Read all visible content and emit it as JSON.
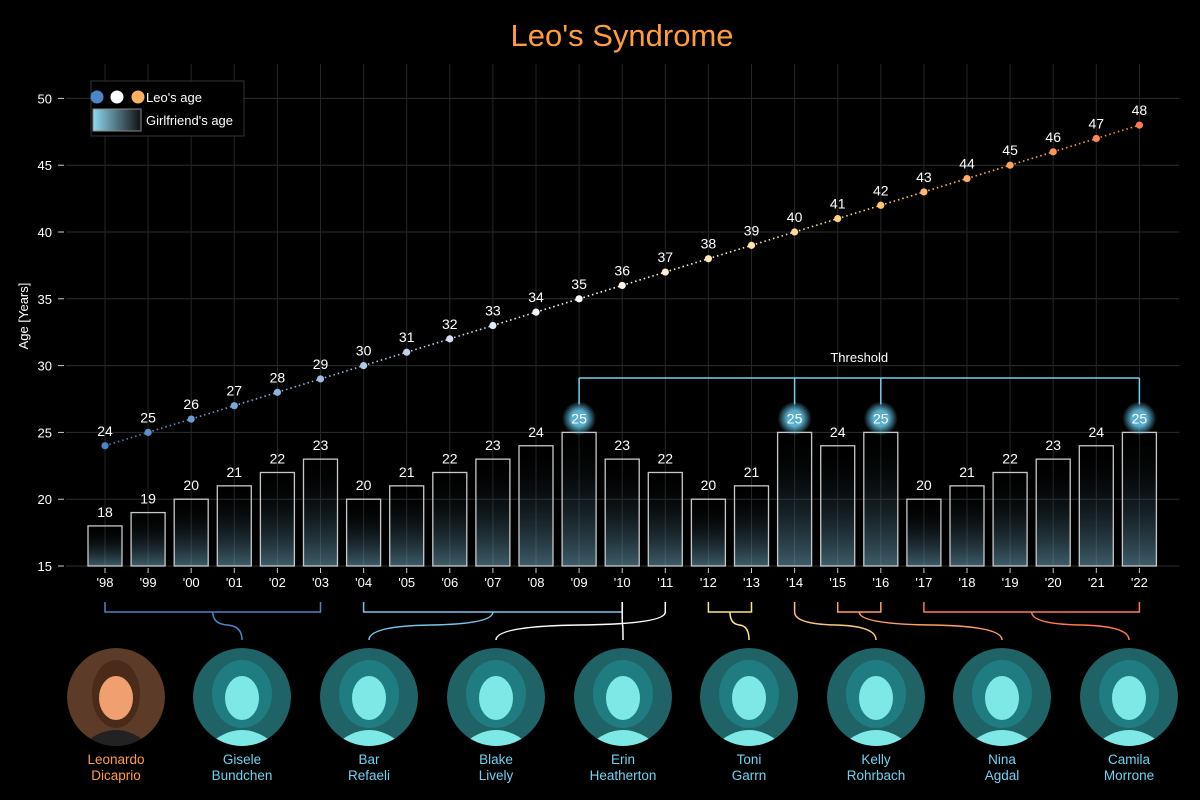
{
  "title": "Leo's Syndrome",
  "chart_data": {
    "type": "bar",
    "title": "Leo's Syndrome",
    "xlabel": "",
    "ylabel": "Age [Years]",
    "ylim": [
      15,
      52
    ],
    "yticks": [
      15,
      20,
      25,
      30,
      35,
      40,
      45,
      50
    ],
    "categories": [
      "'98",
      "'99",
      "'00",
      "'01",
      "'02",
      "'03",
      "'04",
      "'05",
      "'06",
      "'07",
      "'08",
      "'09",
      "'10",
      "'11",
      "'12",
      "'13",
      "'14",
      "'15",
      "'16",
      "'17",
      "'18",
      "'19",
      "'20",
      "'21",
      "'22"
    ],
    "series": [
      {
        "name": "Leo's age",
        "type": "line",
        "values": [
          24,
          25,
          26,
          27,
          28,
          29,
          30,
          31,
          32,
          33,
          34,
          35,
          36,
          37,
          38,
          39,
          40,
          41,
          42,
          43,
          44,
          45,
          46,
          47,
          48
        ]
      },
      {
        "name": "Girlfriend's age",
        "type": "bar",
        "values": [
          18,
          19,
          20,
          21,
          22,
          23,
          20,
          21,
          22,
          23,
          24,
          25,
          23,
          22,
          20,
          21,
          25,
          24,
          25,
          20,
          21,
          22,
          23,
          24,
          25
        ]
      }
    ],
    "threshold": {
      "label": "Threshold",
      "value": 25,
      "markers": [
        "'09",
        "'14",
        "'16",
        "'22"
      ]
    },
    "legend": {
      "position": "top-left",
      "items": [
        "Leo's age",
        "Girlfriend's age"
      ]
    },
    "grid": true,
    "colors": {
      "line_start": "#4a86c8",
      "line_mid": "#ffffff",
      "line_end": "#ff7a50",
      "threshold": "#6fd3f0",
      "title": "#ff9d3b",
      "bar_edge": "#c8c8c8"
    }
  },
  "groups": [
    {
      "from": "'98",
      "to": "'03",
      "person": 1,
      "color": "#4a86c8"
    },
    {
      "from": "'04",
      "to": "'10",
      "person": 2,
      "color": "#7ac2ee"
    },
    {
      "from": "'11",
      "to": "'11",
      "person": 3,
      "color": "#ffffff"
    },
    {
      "from": "'10",
      "to": "'10",
      "person": 4,
      "color": "#ffffff"
    },
    {
      "from": "'12",
      "to": "'13",
      "person": 5,
      "color": "#ffe680"
    },
    {
      "from": "'14",
      "to": "'14",
      "person": 6,
      "color": "#ffc878"
    },
    {
      "from": "'15",
      "to": "'16",
      "person": 7,
      "color": "#ffa060"
    },
    {
      "from": "'17",
      "to": "'22",
      "person": 8,
      "color": "#ff7a50"
    }
  ],
  "people": [
    {
      "first": "Leonardo",
      "last": "Dicaprio",
      "leo": true
    },
    {
      "first": "Gisele",
      "last": "Bundchen"
    },
    {
      "first": "Bar",
      "last": "Refaeli"
    },
    {
      "first": "Blake",
      "last": "Lively"
    },
    {
      "first": "Erin",
      "last": "Heatherton"
    },
    {
      "first": "Toni",
      "last": "Garrn"
    },
    {
      "first": "Kelly",
      "last": "Rohrbach"
    },
    {
      "first": "Nina",
      "last": "Agdal"
    },
    {
      "first": "Camila",
      "last": "Morrone"
    }
  ]
}
